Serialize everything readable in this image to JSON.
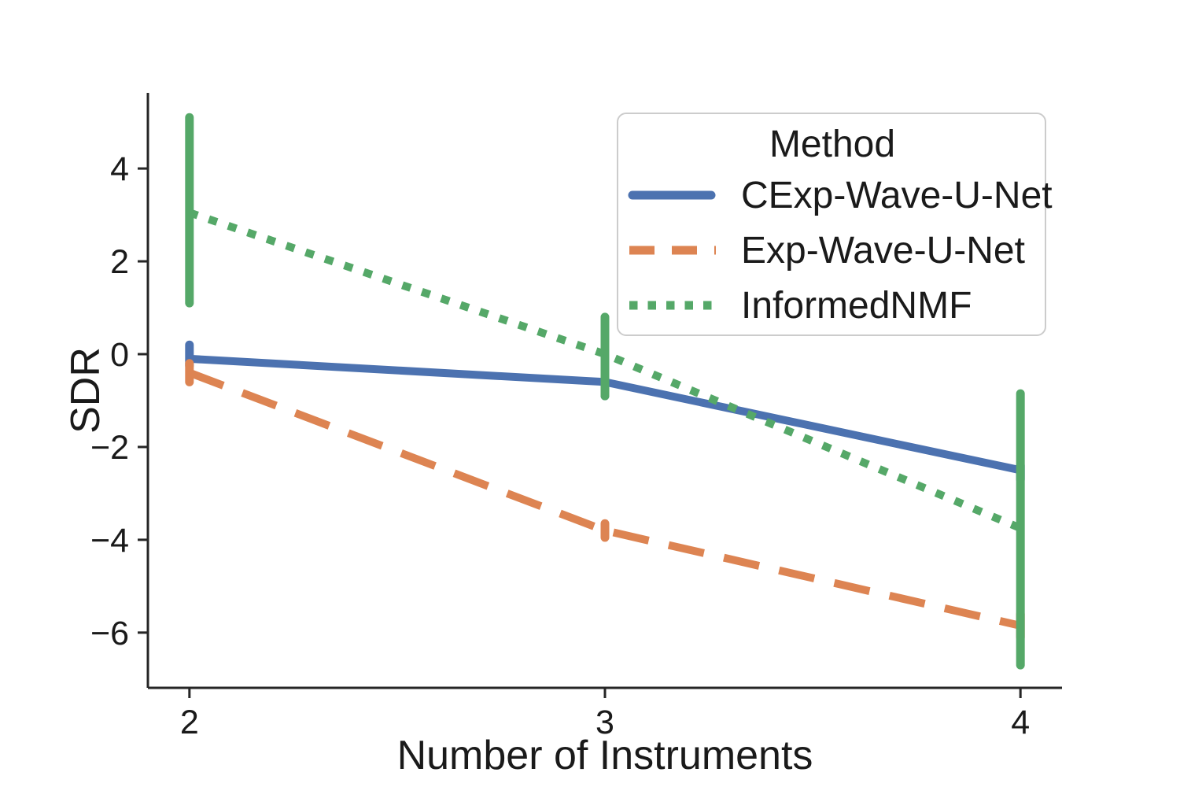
{
  "figure": {
    "background": "#ffffff",
    "text_color": "#1a1a1a",
    "spine_color": "#262626"
  },
  "chart_data": {
    "type": "line",
    "title": "",
    "xlabel": "Number of Instruments",
    "ylabel": "SDR",
    "grid": false,
    "error_style": "vertical-bars",
    "xlim": [
      1.9,
      4.1
    ],
    "ylim": [
      -7.19,
      5.63
    ],
    "xticks": {
      "values": [
        2,
        3,
        4
      ],
      "labels": [
        "2",
        "3",
        "4"
      ]
    },
    "yticks": {
      "values": [
        4,
        2,
        0,
        -2,
        -4,
        -6
      ],
      "labels": [
        "4",
        "2",
        "0",
        "−2",
        "−4",
        "−6"
      ]
    },
    "x": [
      2,
      3,
      4
    ],
    "legend": {
      "title": "Method",
      "position": "upper right"
    },
    "series": [
      {
        "name": "CExp-Wave-U-Net",
        "color": "#4C72B0",
        "line_style": "solid",
        "values": [
          -0.1,
          -0.6,
          -2.5
        ],
        "error_low": [
          -0.25,
          -0.9,
          -2.7
        ],
        "error_high": [
          0.2,
          -0.35,
          -2.4
        ]
      },
      {
        "name": "Exp-Wave-U-Net",
        "color": "#DD8452",
        "line_style": "dashed",
        "values": [
          -0.4,
          -3.8,
          -5.85
        ],
        "error_low": [
          -0.6,
          -3.95,
          -6.1
        ],
        "error_high": [
          -0.2,
          -3.65,
          -5.6
        ]
      },
      {
        "name": "InformedNMF",
        "color": "#55A868",
        "line_style": "dotted",
        "values": [
          3.05,
          0.0,
          -3.75
        ],
        "error_low": [
          1.1,
          -0.9,
          -6.7
        ],
        "error_high": [
          5.1,
          0.8,
          -0.85
        ]
      }
    ]
  }
}
